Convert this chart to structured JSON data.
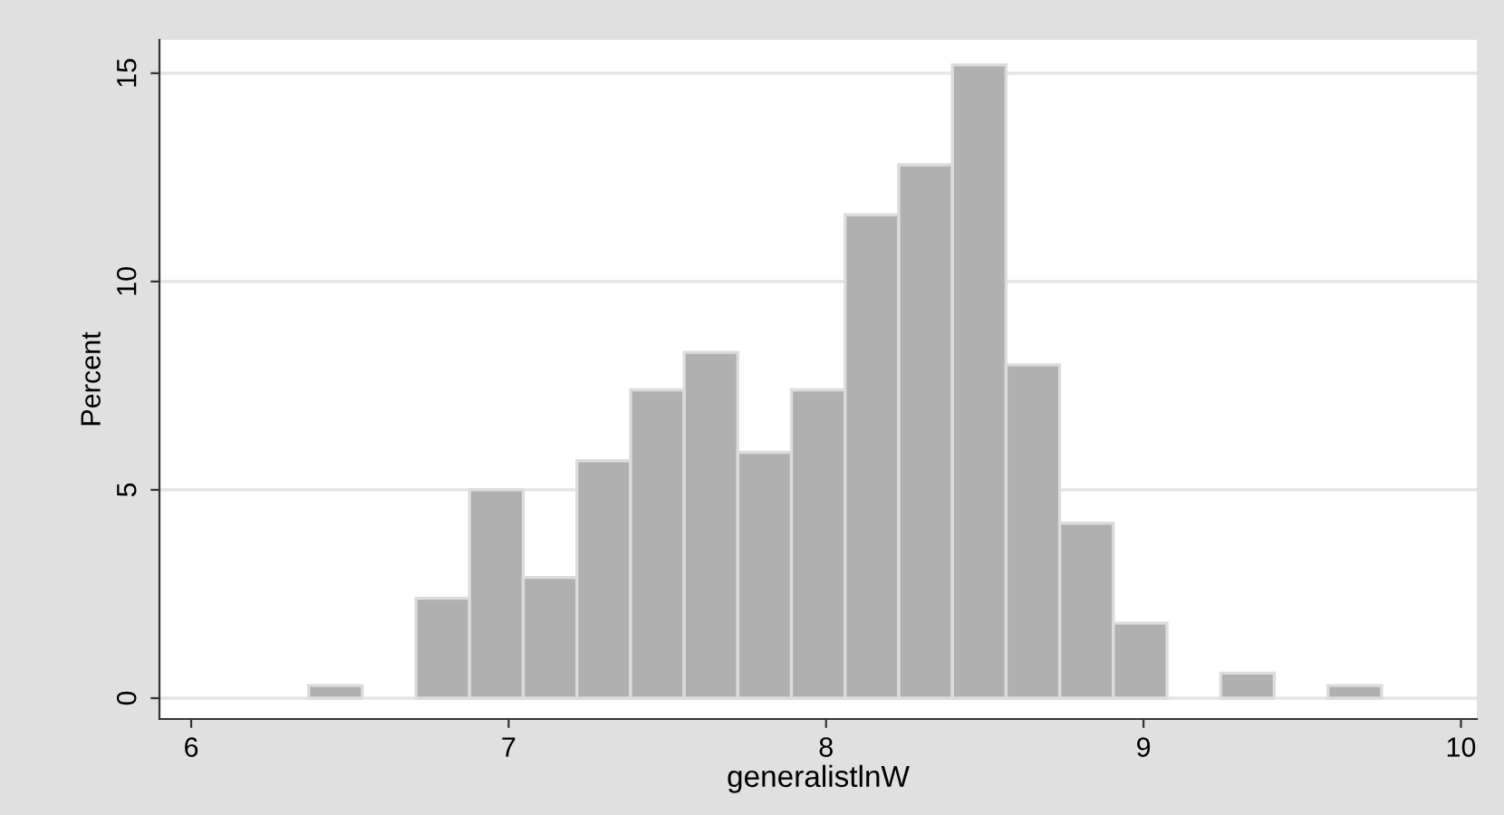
{
  "chart_data": {
    "type": "histogram",
    "xlabel": "generalistlnW",
    "ylabel": "Percent",
    "bins": [
      6.37,
      6.539,
      6.708,
      6.877,
      7.046,
      7.215,
      7.384,
      7.553,
      7.722,
      7.891,
      8.06,
      8.229,
      8.398,
      8.567,
      8.736,
      8.905,
      9.074,
      9.243,
      9.412,
      9.581,
      9.75
    ],
    "values": [
      0.3,
      0,
      2.4,
      5,
      2.9,
      5.7,
      7.4,
      8.3,
      5.9,
      7.4,
      11.6,
      12.8,
      15.2,
      8,
      4.2,
      1.8,
      0,
      0.6,
      0,
      0.3
    ],
    "color": "#b0b0b0",
    "xlim": [
      5.9,
      10.05
    ],
    "ylim": [
      -0.5,
      15.8
    ],
    "xticks": [
      6,
      7,
      8,
      9,
      10
    ],
    "yticks": [
      0,
      5,
      10,
      15
    ],
    "grid": "y"
  }
}
